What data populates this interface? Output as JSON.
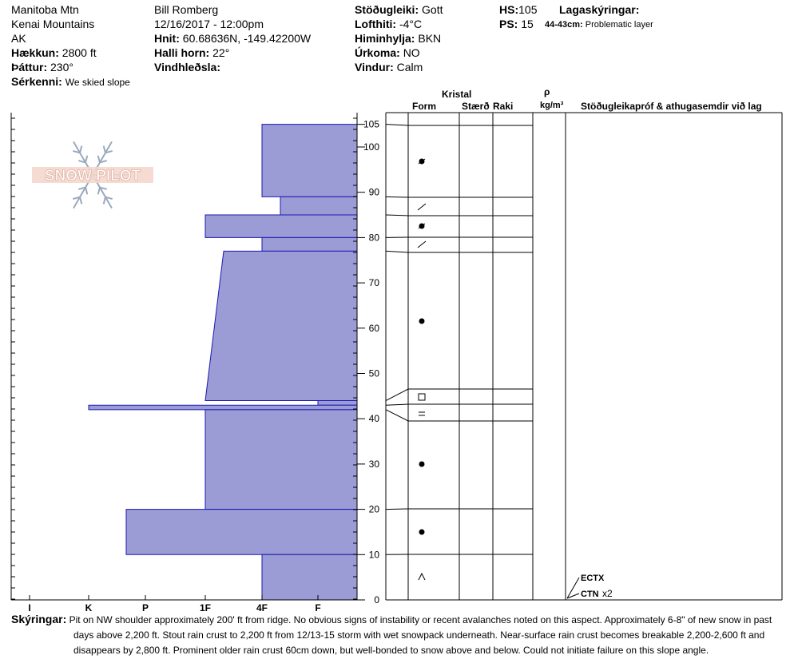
{
  "header": {
    "location": "Manitoba Mtn",
    "range": "Kenai Mountains",
    "state": "AK",
    "elevation_label": "Hækkun:",
    "elevation": "2800 ft",
    "aspect_label": "Þáttur:",
    "aspect": "230°",
    "feature_label": "Sérkenni:",
    "feature": "We skied slope",
    "observer": "Bill Romberg",
    "datetime": "12/16/2017 - 12:00pm",
    "coords_label": "Hnit:",
    "coords": "60.68636N, -149.42200W",
    "slope_label": "Halli horn:",
    "slope": "22°",
    "wind_loading_label": "Vindhleðsla:",
    "wind_loading": "",
    "stability_label": "Stöðugleiki:",
    "stability": "Gott",
    "air_temp_label": "Lofthiti:",
    "air_temp": "-4°C",
    "sky_label": "Himinhylja:",
    "sky": "BKN",
    "precip_label": "Úrkoma:",
    "precip": "NO",
    "wind_label": "Vindur:",
    "wind": "Calm",
    "hs_label": "HS:",
    "hs": "105",
    "ps_label": "PS:",
    "ps": "15",
    "layer_notes_label": "Lagaskýringar:",
    "layer_note_range": "44-43cm:",
    "layer_note_text": "Problematic layer"
  },
  "columns": {
    "crystal": "Kristal",
    "form": "Form",
    "size": "Stærð",
    "moisture": "Raki",
    "rho": "ρ",
    "density_unit": "kg/m³",
    "tests": "Stöðugleikapróf & athugasemdir við lag"
  },
  "logo_text": "SNOW PILOT",
  "notes_label": "Skýringar:",
  "notes": [
    "Pit on NW shoulder approximately 200' ft from ridge.  No obvious signs of instability or recent avalanches noted on this aspect.  Approximately 6-8\" of new snow in past",
    "days above 2,200 ft.  Stout rain crust to 2,200 ft from 12/13-15 storm with wet snowpack underneath.  Near-surface rain crust becomes breakable 2,200-2,600 ft and",
    "disappears by 2,800 ft.    Prominent older rain crust 60cm down, but well-bonded to snow above and below.  Could not initiate failure on this slope angle."
  ],
  "chart_data": {
    "type": "area",
    "xlabel": "",
    "ylabel": "",
    "hardness_scale": [
      "I",
      "K",
      "P",
      "1F",
      "4F",
      "F"
    ],
    "ylim": [
      0,
      105
    ],
    "yticks": [
      0,
      10,
      20,
      30,
      40,
      50,
      60,
      70,
      80,
      90,
      100,
      105
    ],
    "layers": [
      {
        "top": 105,
        "bottom": 89,
        "hardness_top": "4F",
        "hardness_bottom": "4F"
      },
      {
        "top": 89,
        "bottom": 85,
        "hardness_top": "4F-",
        "hardness_bottom": "4F-"
      },
      {
        "top": 85,
        "bottom": 80,
        "hardness_top": "1F",
        "hardness_bottom": "1F"
      },
      {
        "top": 80,
        "bottom": 77,
        "hardness_top": "4F",
        "hardness_bottom": "4F"
      },
      {
        "top": 77,
        "bottom": 44,
        "hardness_top": "1F-",
        "hardness_bottom": "1F"
      },
      {
        "top": 44,
        "bottom": 43,
        "hardness_top": "F",
        "hardness_bottom": "F"
      },
      {
        "top": 43,
        "bottom": 42,
        "hardness_top": "K",
        "hardness_bottom": "K"
      },
      {
        "top": 42,
        "bottom": 20,
        "hardness_top": "1F",
        "hardness_bottom": "1F"
      },
      {
        "top": 20,
        "bottom": 10,
        "hardness_top": "P+",
        "hardness_bottom": "P+"
      },
      {
        "top": 10,
        "bottom": 0,
        "hardness_top": "4F",
        "hardness_bottom": "4F"
      }
    ],
    "crystal_forms": [
      {
        "height": 97,
        "symbol": "round-decomposing"
      },
      {
        "height": 87,
        "symbol": "decomposing"
      },
      {
        "height": 82.5,
        "symbol": "round-decomposing"
      },
      {
        "height": 78.5,
        "symbol": "decomposing"
      },
      {
        "height": 61.5,
        "symbol": "rounded"
      },
      {
        "height": 44.5,
        "symbol": "faceted"
      },
      {
        "height": 41,
        "symbol": "melt-freeze-crust"
      },
      {
        "height": 30,
        "symbol": "rounded"
      },
      {
        "height": 15,
        "symbol": "rounded"
      },
      {
        "height": 5,
        "symbol": "depth-hoar"
      }
    ],
    "tests": [
      {
        "label": "ECTX",
        "extra": ""
      },
      {
        "label": "CTN",
        "extra": "x2"
      }
    ]
  }
}
